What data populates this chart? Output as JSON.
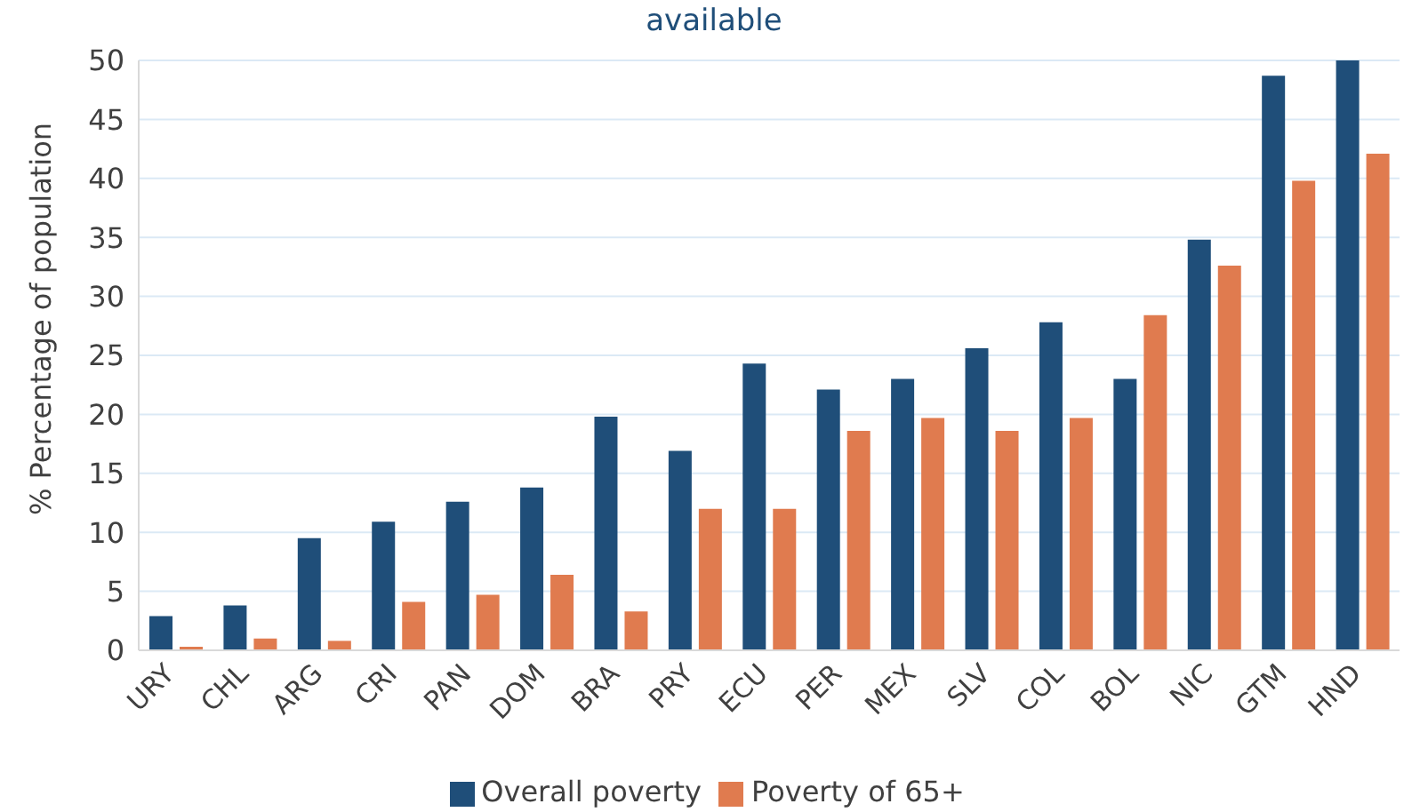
{
  "chart_data": {
    "type": "bar",
    "title": "available",
    "ylabel": "% Percentage of population",
    "categories": [
      "URY",
      "CHL",
      "ARG",
      "CRI",
      "PAN",
      "DOM",
      "BRA",
      "PRY",
      "ECU",
      "PER",
      "MEX",
      "SLV",
      "COL",
      "BOL",
      "NIC",
      "GTM",
      "HND"
    ],
    "series": [
      {
        "name": "Overall poverty",
        "color": "#1f4e79",
        "values": [
          2.9,
          3.8,
          9.5,
          10.9,
          12.6,
          13.8,
          19.8,
          16.9,
          24.3,
          22.1,
          23.0,
          25.6,
          27.8,
          23.0,
          34.8,
          48.7,
          50.0
        ]
      },
      {
        "name": "Poverty of 65+",
        "color": "#e07b4f",
        "values": [
          0.3,
          1.0,
          0.8,
          4.1,
          4.7,
          6.4,
          3.3,
          12.0,
          12.0,
          18.6,
          19.7,
          18.6,
          19.7,
          28.4,
          32.6,
          39.8,
          42.1
        ]
      }
    ],
    "ylim": [
      0,
      50
    ],
    "yticks": [
      0,
      5,
      10,
      15,
      20,
      25,
      30,
      35,
      40,
      45,
      50
    ],
    "grid": "y",
    "legend": "bottom"
  }
}
